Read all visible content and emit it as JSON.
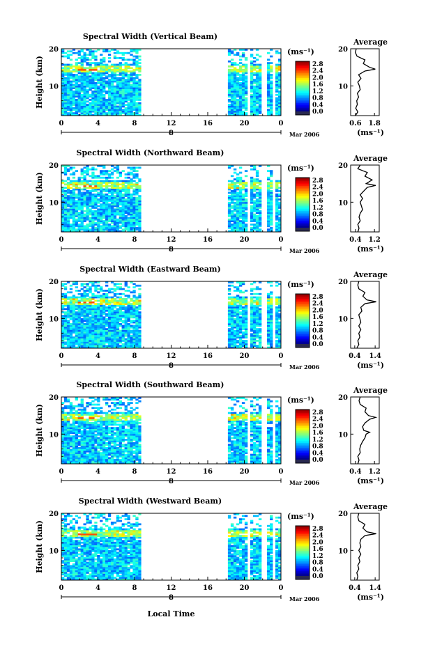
{
  "chart_data": [
    {
      "type": "heatmap",
      "title": "Spectral Width (Vertical Beam)",
      "ylabel": "Height (km)",
      "ylim": [
        2,
        20
      ],
      "yticks": [
        20,
        10
      ],
      "xlim": [
        0,
        24
      ],
      "xticks": [
        "0",
        "4",
        "8",
        "12",
        "16",
        "20",
        "0"
      ],
      "date_label": "Mar 2006",
      "day_label": "8",
      "colorbar": {
        "unit": "(ms⁻¹)",
        "ticks": [
          "2.8",
          "2.4",
          "2.0",
          "1.6",
          "1.2",
          "0.8",
          "0.4",
          "0.0"
        ]
      },
      "data_coverage_hours": [
        [
          0,
          8.7
        ],
        [
          18.2,
          24
        ]
      ],
      "average": {
        "title": "Average",
        "xlabel": "(ms⁻¹)",
        "xticks": [
          "0.6",
          "1.8"
        ],
        "xlim": [
          0.3,
          2.1
        ],
        "yticks": [
          20,
          10
        ],
        "profile": [
          [
            2,
            0.6
          ],
          [
            3,
            0.75
          ],
          [
            4,
            0.62
          ],
          [
            5,
            0.72
          ],
          [
            6,
            0.68
          ],
          [
            7,
            0.8
          ],
          [
            8,
            0.72
          ],
          [
            9,
            0.9
          ],
          [
            10,
            0.85
          ],
          [
            11,
            0.75
          ],
          [
            12,
            0.95
          ],
          [
            13,
            0.8
          ],
          [
            14,
            1.2
          ],
          [
            14.5,
            1.85
          ],
          [
            15,
            1.5
          ],
          [
            16,
            1.1
          ],
          [
            17,
            1.2
          ],
          [
            18,
            0.7
          ],
          [
            19,
            0.6
          ],
          [
            20,
            0.65
          ]
        ]
      }
    },
    {
      "type": "heatmap",
      "title": "Spectral Width (Northward Beam)",
      "ylabel": "Height (km)",
      "ylim": [
        2,
        20
      ],
      "yticks": [
        20,
        10
      ],
      "xlim": [
        0,
        24
      ],
      "xticks": [
        "0",
        "4",
        "8",
        "12",
        "16",
        "20",
        "0"
      ],
      "date_label": "Mar 2006",
      "day_label": "8",
      "colorbar": {
        "unit": "(ms⁻¹)",
        "ticks": [
          "2.8",
          "2.4",
          "2.0",
          "1.6",
          "1.2",
          "0.8",
          "0.4",
          "0.0"
        ]
      },
      "data_coverage_hours": [
        [
          0,
          8.7
        ],
        [
          18.2,
          24
        ]
      ],
      "average": {
        "title": "Average",
        "xlabel": "(ms⁻¹)",
        "xticks": [
          "0.4",
          "1.2"
        ],
        "xlim": [
          0.2,
          1.4
        ],
        "yticks": [
          20,
          10
        ],
        "profile": [
          [
            2,
            0.5
          ],
          [
            3,
            0.55
          ],
          [
            4,
            0.5
          ],
          [
            5,
            0.6
          ],
          [
            6,
            0.55
          ],
          [
            7,
            0.6
          ],
          [
            8,
            0.7
          ],
          [
            9,
            0.65
          ],
          [
            10,
            0.6
          ],
          [
            11,
            0.7
          ],
          [
            12,
            0.6
          ],
          [
            13,
            0.75
          ],
          [
            14,
            0.9
          ],
          [
            14.5,
            1.25
          ],
          [
            15,
            0.85
          ],
          [
            16,
            1.1
          ],
          [
            17,
            0.8
          ],
          [
            18,
            0.9
          ],
          [
            19,
            0.5
          ],
          [
            20,
            0.6
          ]
        ]
      }
    },
    {
      "type": "heatmap",
      "title": "Spectral Width (Eastward Beam)",
      "ylabel": "Height (km)",
      "ylim": [
        2,
        20
      ],
      "yticks": [
        20,
        10
      ],
      "xlim": [
        0,
        24
      ],
      "xticks": [
        "0",
        "4",
        "8",
        "12",
        "16",
        "20",
        "0"
      ],
      "date_label": "Mar 2006",
      "day_label": "8",
      "colorbar": {
        "unit": "(ms⁻¹)",
        "ticks": [
          "2.8",
          "2.4",
          "2.0",
          "1.6",
          "1.2",
          "0.8",
          "0.4",
          "0.0"
        ]
      },
      "data_coverage_hours": [
        [
          0,
          8.7
        ],
        [
          18.2,
          24
        ]
      ],
      "average": {
        "title": "Average",
        "xlabel": "(ms⁻¹)",
        "xticks": [
          "0.4",
          "1.4"
        ],
        "xlim": [
          0.2,
          1.6
        ],
        "yticks": [
          20,
          10
        ],
        "profile": [
          [
            2,
            0.5
          ],
          [
            3,
            0.6
          ],
          [
            4,
            0.55
          ],
          [
            5,
            0.65
          ],
          [
            6,
            0.6
          ],
          [
            7,
            0.7
          ],
          [
            8,
            0.6
          ],
          [
            9,
            0.7
          ],
          [
            10,
            0.65
          ],
          [
            11,
            0.6
          ],
          [
            12,
            0.75
          ],
          [
            13,
            0.7
          ],
          [
            14,
            0.9
          ],
          [
            14.5,
            1.45
          ],
          [
            15,
            1.0
          ],
          [
            16,
            0.8
          ],
          [
            17,
            0.9
          ],
          [
            18,
            0.6
          ],
          [
            19,
            0.55
          ],
          [
            20,
            0.6
          ]
        ]
      }
    },
    {
      "type": "heatmap",
      "title": "Spectral Width (Southward Beam)",
      "ylabel": "Height (km)",
      "ylim": [
        2,
        20
      ],
      "yticks": [
        20,
        10
      ],
      "xlim": [
        0,
        24
      ],
      "xticks": [
        "0",
        "4",
        "8",
        "12",
        "16",
        "20",
        "0"
      ],
      "date_label": "Mar 2006",
      "day_label": "8",
      "colorbar": {
        "unit": "(ms⁻¹)",
        "ticks": [
          "2.8",
          "2.4",
          "2.0",
          "1.6",
          "1.2",
          "0.8",
          "0.4",
          "0.0"
        ]
      },
      "data_coverage_hours": [
        [
          0,
          8.7
        ],
        [
          18.2,
          24
        ]
      ],
      "average": {
        "title": "Average",
        "xlabel": "(ms⁻¹)",
        "xticks": [
          "0.4",
          "1.2"
        ],
        "xlim": [
          0.2,
          1.4
        ],
        "yticks": [
          20,
          10
        ],
        "profile": [
          [
            2,
            0.5
          ],
          [
            3,
            0.55
          ],
          [
            4,
            0.5
          ],
          [
            5,
            0.6
          ],
          [
            6,
            0.58
          ],
          [
            7,
            0.62
          ],
          [
            8,
            0.7
          ],
          [
            9,
            0.8
          ],
          [
            10,
            0.85
          ],
          [
            10.5,
            1.0
          ],
          [
            11,
            0.75
          ],
          [
            12,
            0.7
          ],
          [
            13,
            0.8
          ],
          [
            14,
            1.0
          ],
          [
            14.5,
            1.25
          ],
          [
            15,
            0.95
          ],
          [
            16,
            0.8
          ],
          [
            17,
            0.85
          ],
          [
            18,
            0.6
          ],
          [
            19,
            0.55
          ],
          [
            20,
            0.6
          ]
        ]
      }
    },
    {
      "type": "heatmap",
      "title": "Spectral Width (Westward Beam)",
      "ylabel": "Height (km)",
      "ylim": [
        2,
        20
      ],
      "yticks": [
        20,
        10
      ],
      "xlim": [
        0,
        24
      ],
      "xticks": [
        "0",
        "4",
        "8",
        "12",
        "16",
        "20",
        "0"
      ],
      "date_label": "Mar 2006",
      "day_label": "8",
      "xlabel": "Local Time",
      "colorbar": {
        "unit": "(ms⁻¹)",
        "ticks": [
          "2.8",
          "2.4",
          "2.0",
          "1.6",
          "1.2",
          "0.8",
          "0.4",
          "0.0"
        ]
      },
      "data_coverage_hours": [
        [
          0,
          8.7
        ],
        [
          18.2,
          24
        ]
      ],
      "average": {
        "title": "Average",
        "xlabel": "(ms⁻¹)",
        "xticks": [
          "0.4",
          "1.4"
        ],
        "xlim": [
          0.2,
          1.6
        ],
        "yticks": [
          20,
          10
        ],
        "profile": [
          [
            2,
            0.5
          ],
          [
            3,
            0.55
          ],
          [
            4,
            0.5
          ],
          [
            5,
            0.6
          ],
          [
            6,
            0.55
          ],
          [
            7,
            0.65
          ],
          [
            8,
            0.6
          ],
          [
            9,
            0.7
          ],
          [
            10,
            0.6
          ],
          [
            11,
            0.7
          ],
          [
            12,
            0.65
          ],
          [
            13,
            0.7
          ],
          [
            14,
            0.9
          ],
          [
            14.5,
            1.45
          ],
          [
            15,
            1.0
          ],
          [
            16,
            0.8
          ],
          [
            17,
            0.9
          ],
          [
            18,
            0.6
          ],
          [
            19,
            0.55
          ],
          [
            20,
            0.6
          ]
        ]
      }
    }
  ]
}
